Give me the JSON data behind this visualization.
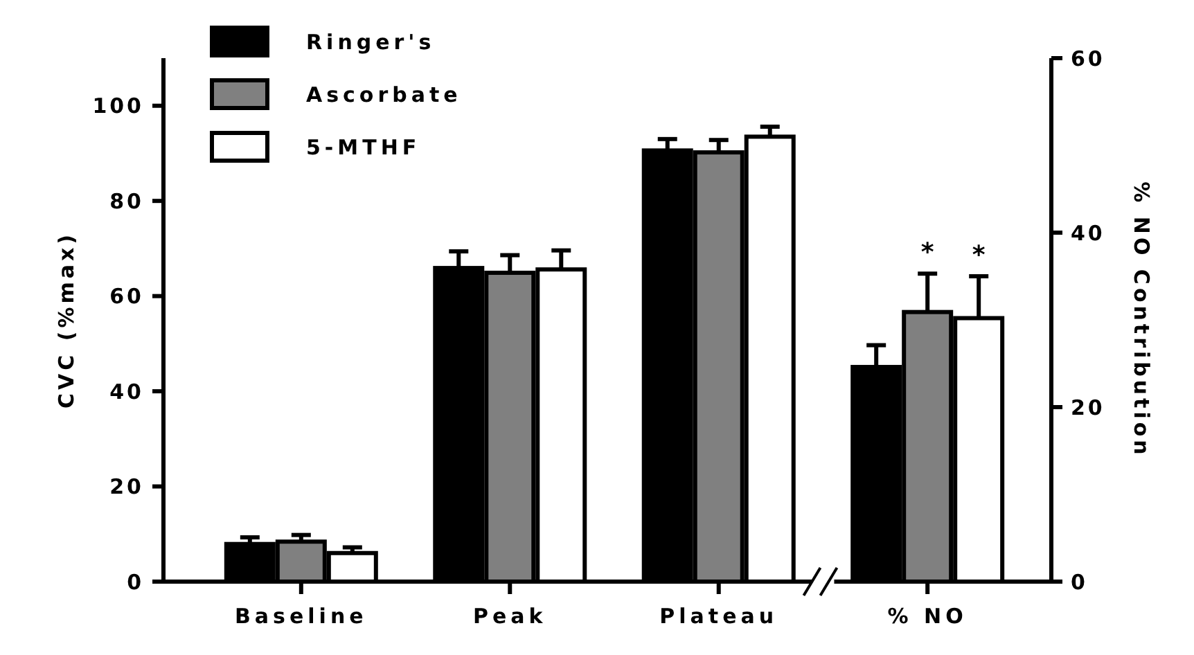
{
  "chart_data": {
    "type": "bar",
    "ylabel": "CVC (%max)",
    "y2label": "% NO Contribution",
    "categories": [
      "Baseline",
      "Peak",
      "Plateau",
      "% NO"
    ],
    "series": [
      {
        "name": "Ringer's",
        "color": "#000000",
        "values": [
          7.9,
          65.9,
          90.6,
          null
        ],
        "errors": [
          [
            7.9,
            9.3
          ],
          [
            65.9,
            69.4
          ],
          [
            90.6,
            93.0
          ],
          null
        ]
      },
      {
        "name": "Ascorbate",
        "color": "#808080",
        "values": [
          8.4,
          64.9,
          90.2,
          null
        ],
        "errors": [
          [
            8.4,
            9.8
          ],
          [
            64.9,
            68.6
          ],
          [
            90.2,
            92.8
          ],
          null
        ]
      },
      {
        "name": "5-MTHF",
        "color": "#ffffff",
        "values": [
          6.0,
          65.6,
          93.5,
          null
        ],
        "errors": [
          [
            6.0,
            7.2
          ],
          [
            65.6,
            69.6
          ],
          [
            93.5,
            95.6
          ],
          null
        ]
      },
      {
        "color": "#000000",
        "axis": "y2",
        "values": [
          null,
          null,
          null,
          24.6
        ],
        "errors": [
          null,
          null,
          null,
          [
            24.6,
            27.1
          ]
        ]
      },
      {
        "color": "#808080",
        "axis": "y2",
        "values": [
          null,
          null,
          null,
          30.9
        ],
        "errors": [
          null,
          null,
          null,
          [
            30.9,
            35.3
          ]
        ]
      },
      {
        "color": "#ffffff",
        "axis": "y2",
        "values": [
          null,
          null,
          null,
          30.2
        ],
        "errors": [
          null,
          null,
          null,
          [
            30.2,
            35.0
          ]
        ]
      }
    ],
    "ylim": [
      0,
      110
    ],
    "yticks": [
      0,
      20,
      40,
      60,
      80,
      100
    ],
    "y2lim": [
      0,
      60
    ],
    "y2ticks": [
      0,
      20,
      40,
      60
    ],
    "annotations": [
      "*",
      "*"
    ],
    "legend": "top left",
    "grid": false
  }
}
